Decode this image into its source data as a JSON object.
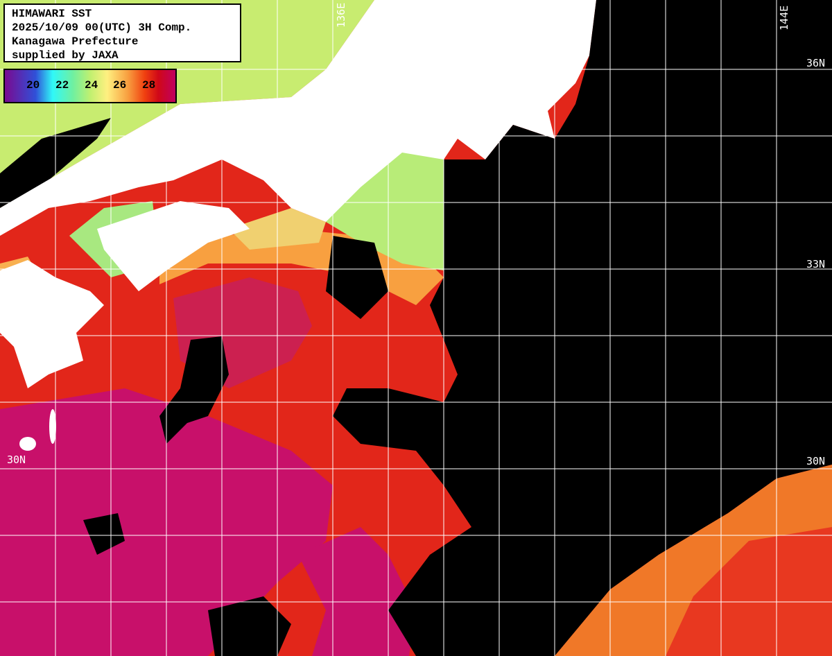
{
  "title_box": {
    "lines": [
      "HIMAWARI SST",
      "2025/10/09 00(UTC) 3H Comp.",
      "Kanagawa Prefecture",
      "supplied by JAXA"
    ]
  },
  "legend": {
    "ticks": [
      "20",
      "22",
      "24",
      "26",
      "28"
    ],
    "colors": [
      "#7a0a90",
      "#3050d8",
      "#30f8f8",
      "#70f0a0",
      "#c0f070",
      "#fff080",
      "#f8a040",
      "#f04010",
      "#d00818",
      "#c00060"
    ]
  },
  "grid_labels": {
    "lon": [
      "136E",
      "144E"
    ],
    "lat_right": [
      "36N",
      "33N",
      "30N"
    ],
    "lat_left": [
      "30N"
    ]
  },
  "colors": {
    "land": "#ffffff",
    "cloud": "#000000",
    "grid": "#ffffff",
    "contour": "#000000"
  }
}
